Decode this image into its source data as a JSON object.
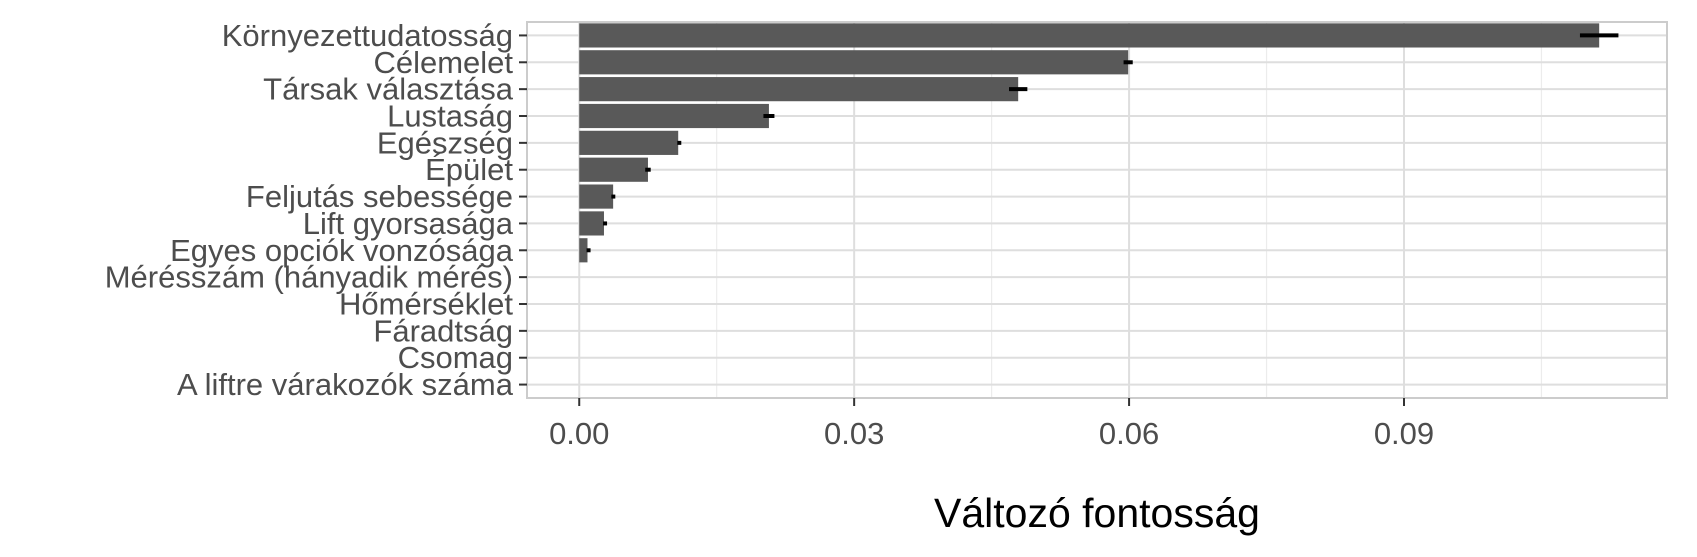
{
  "chart_data": {
    "type": "bar",
    "orientation": "horizontal",
    "categories": [
      "Környezettudatosság",
      "Célemelet",
      "Társak választása",
      "Lustaság",
      "Egészség",
      "Épület",
      "Feljutás sebessége",
      "Lift gyorsasága",
      "Egyes opciók vonzósága",
      "Mérésszám (hányadik mérés)",
      "Hőmérséklet",
      "Fáradtság",
      "Csomag",
      "A liftre várakozók száma"
    ],
    "values": [
      0.1113,
      0.0599,
      0.0479,
      0.0207,
      0.0108,
      0.0075,
      0.0037,
      0.0027,
      0.0009,
      0,
      0,
      0,
      0,
      0
    ],
    "error_low": [
      0.1092,
      0.0594,
      0.0469,
      0.0201,
      0.0107,
      0.0072,
      0.0035,
      0.0026,
      0.0008,
      0,
      0,
      0,
      0,
      0
    ],
    "error_high": [
      0.1134,
      0.0604,
      0.0489,
      0.0213,
      0.0109,
      0.0078,
      0.0039,
      0.0028,
      0.001,
      0,
      0,
      0,
      0,
      0
    ],
    "x_ticks": [
      "0.00",
      "0.03",
      "0.06",
      "0.09"
    ],
    "x_tick_values": [
      0,
      0.03,
      0.06,
      0.09
    ],
    "xlim": [
      -0.0057,
      0.1187
    ],
    "xlabel": "Változó fontosság",
    "ylabel": "",
    "title": "",
    "grid": true,
    "legend": "none",
    "colors": {
      "bar": "#595959",
      "error_bar": "#000000",
      "grid_major": "#dedede",
      "grid_minor": "#ececec",
      "panel_border": "#cccccc"
    }
  }
}
